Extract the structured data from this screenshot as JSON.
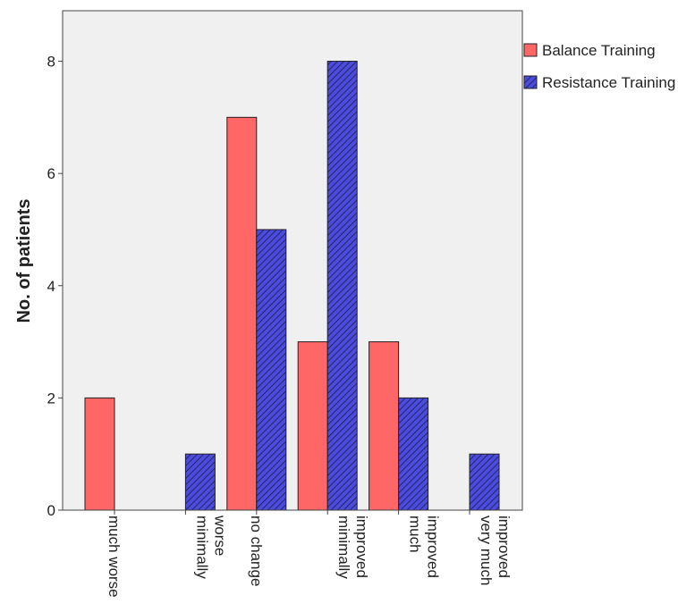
{
  "chart_data": {
    "type": "bar",
    "y_label": "No. of patients",
    "categories": [
      "much worse",
      "minimally worse",
      "no change",
      "minimally improved",
      "much improved",
      "very much improved"
    ],
    "series": [
      {
        "name": "Balance Training",
        "color": "#ff6666",
        "values": [
          2,
          0,
          7,
          3,
          3,
          0
        ]
      },
      {
        "name": "Resistance Training",
        "color": "#4b4bdc",
        "hatch": true,
        "values": [
          0,
          1,
          5,
          8,
          2,
          1
        ]
      }
    ],
    "ylim": [
      0,
      8.9
    ],
    "yticks": [
      0,
      2,
      4,
      6,
      8
    ],
    "grid": false,
    "legend": "right"
  }
}
